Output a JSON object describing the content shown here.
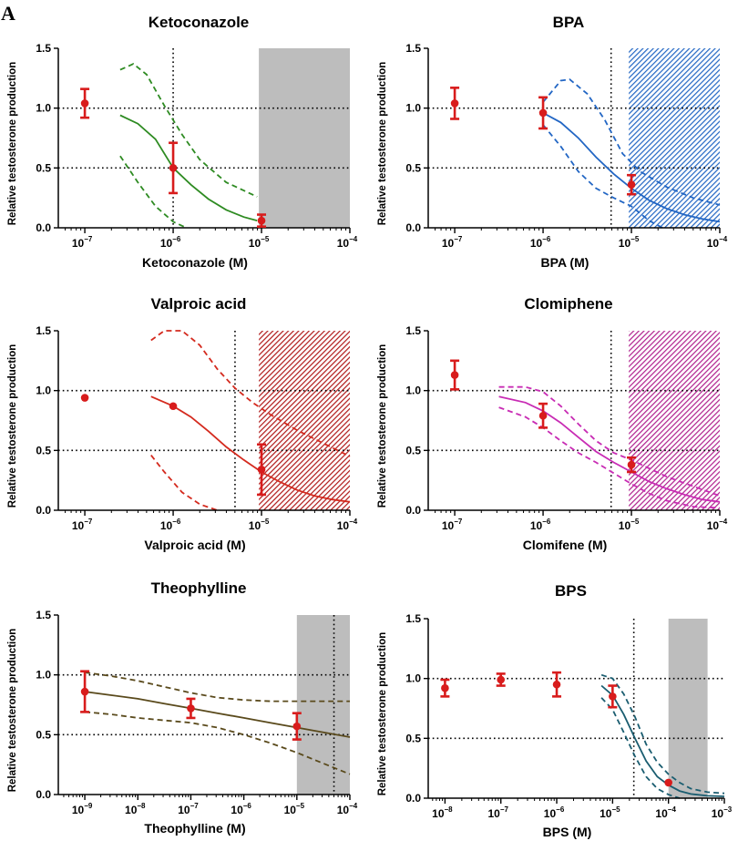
{
  "figure": {
    "panel_label": "A"
  },
  "chart_data": [
    {
      "type": "scatter",
      "title": "Ketoconazole",
      "xlabel": "Ketoconazole (M)",
      "ylabel": "Relative testosterone production",
      "x_scale": "log",
      "x_range_exp": [
        -7.3,
        -4
      ],
      "x_tick_exps": [
        -7,
        -6,
        -5,
        -4
      ],
      "ylim": [
        0,
        1.5
      ],
      "y_ticks": [
        0.0,
        0.5,
        1.0,
        1.5
      ],
      "color": "#2e8b22",
      "shade": {
        "type": "solid",
        "from_exp": -5.03,
        "to_exp": -4,
        "color": "#bdbdbd"
      },
      "vline_exp": -6,
      "hlines": [
        1.0,
        0.5
      ],
      "points": [
        {
          "x_exp": -7,
          "y": 1.04,
          "err": 0.12
        },
        {
          "x_exp": -6,
          "y": 0.5,
          "err": 0.21
        },
        {
          "x_exp": -5,
          "y": 0.06,
          "err": 0.05
        }
      ],
      "curve": [
        [
          -6.6,
          0.94
        ],
        [
          -6.4,
          0.87
        ],
        [
          -6.2,
          0.74
        ],
        [
          -6.0,
          0.5
        ],
        [
          -5.8,
          0.36
        ],
        [
          -5.6,
          0.24
        ],
        [
          -5.4,
          0.15
        ],
        [
          -5.2,
          0.09
        ],
        [
          -5.05,
          0.06
        ]
      ],
      "ci_upper": [
        [
          -6.6,
          1.32
        ],
        [
          -6.45,
          1.37
        ],
        [
          -6.3,
          1.28
        ],
        [
          -6.1,
          1.02
        ],
        [
          -5.9,
          0.78
        ],
        [
          -5.7,
          0.57
        ],
        [
          -5.4,
          0.38
        ],
        [
          -5.05,
          0.26
        ]
      ],
      "ci_lower": [
        [
          -6.6,
          0.6
        ],
        [
          -6.4,
          0.38
        ],
        [
          -6.2,
          0.18
        ],
        [
          -6.0,
          0.05
        ],
        [
          -5.85,
          0.0
        ]
      ]
    },
    {
      "type": "scatter",
      "title": "BPA",
      "xlabel": "BPA (M)",
      "ylabel": "Relative testosterone production",
      "x_scale": "log",
      "x_range_exp": [
        -7.3,
        -4
      ],
      "x_tick_exps": [
        -7,
        -6,
        -5,
        -4
      ],
      "ylim": [
        0,
        1.5
      ],
      "y_ticks": [
        0.0,
        0.5,
        1.0,
        1.5
      ],
      "color": "#2266c4",
      "shade": {
        "type": "hatch",
        "from_exp": -5.03,
        "to_exp": -4,
        "color": "#2266c4"
      },
      "vline_exp": -5.23,
      "hlines": [
        1.0,
        0.5
      ],
      "points": [
        {
          "x_exp": -7,
          "y": 1.04,
          "err": 0.13
        },
        {
          "x_exp": -6,
          "y": 0.96,
          "err": 0.13
        },
        {
          "x_exp": -5,
          "y": 0.36,
          "err": 0.08
        }
      ],
      "curve": [
        [
          -6.0,
          0.96
        ],
        [
          -5.8,
          0.88
        ],
        [
          -5.6,
          0.75
        ],
        [
          -5.4,
          0.59
        ],
        [
          -5.2,
          0.45
        ],
        [
          -5.0,
          0.33
        ],
        [
          -4.8,
          0.23
        ],
        [
          -4.6,
          0.16
        ],
        [
          -4.4,
          0.11
        ],
        [
          -4.2,
          0.075
        ],
        [
          -4.0,
          0.05
        ]
      ],
      "ci_upper": [
        [
          -6.0,
          1.05
        ],
        [
          -5.8,
          1.23
        ],
        [
          -5.7,
          1.24
        ],
        [
          -5.5,
          1.12
        ],
        [
          -5.3,
          0.9
        ],
        [
          -5.1,
          0.62
        ],
        [
          -4.9,
          0.47
        ],
        [
          -4.6,
          0.34
        ],
        [
          -4.3,
          0.25
        ],
        [
          -4.0,
          0.19
        ]
      ],
      "ci_lower": [
        [
          -6.0,
          0.86
        ],
        [
          -5.8,
          0.68
        ],
        [
          -5.6,
          0.47
        ],
        [
          -5.4,
          0.33
        ],
        [
          -5.2,
          0.25
        ],
        [
          -5.0,
          0.18
        ],
        [
          -4.8,
          0.06
        ],
        [
          -4.65,
          0.0
        ]
      ]
    },
    {
      "type": "scatter",
      "title": "Valproic acid",
      "xlabel": "Valproic acid (M)",
      "ylabel": "Relative testosterone production",
      "x_scale": "log",
      "x_range_exp": [
        -7.3,
        -4
      ],
      "x_tick_exps": [
        -7,
        -6,
        -5,
        -4
      ],
      "ylim": [
        0,
        1.5
      ],
      "y_ticks": [
        0.0,
        0.5,
        1.0,
        1.5
      ],
      "color": "#d42a1e",
      "shade": {
        "type": "hatch",
        "from_exp": -5.03,
        "to_exp": -4,
        "color": "#b01818"
      },
      "vline_exp": -5.3,
      "hlines": [
        1.0,
        0.5
      ],
      "points": [
        {
          "x_exp": -7,
          "y": 0.94,
          "err": 0
        },
        {
          "x_exp": -6,
          "y": 0.87,
          "err": 0
        },
        {
          "x_exp": -5,
          "y": 0.34,
          "err": 0.21
        }
      ],
      "curve": [
        [
          -6.25,
          0.95
        ],
        [
          -6.0,
          0.87
        ],
        [
          -5.8,
          0.78
        ],
        [
          -5.6,
          0.66
        ],
        [
          -5.4,
          0.53
        ],
        [
          -5.2,
          0.42
        ],
        [
          -5.0,
          0.32
        ],
        [
          -4.8,
          0.24
        ],
        [
          -4.6,
          0.17
        ],
        [
          -4.4,
          0.12
        ],
        [
          -4.2,
          0.09
        ],
        [
          -4.0,
          0.07
        ]
      ],
      "ci_upper": [
        [
          -6.25,
          1.42
        ],
        [
          -6.1,
          1.5
        ],
        [
          -5.9,
          1.5
        ],
        [
          -5.7,
          1.38
        ],
        [
          -5.5,
          1.18
        ],
        [
          -5.3,
          1.02
        ],
        [
          -5.1,
          0.9
        ],
        [
          -4.9,
          0.8
        ],
        [
          -4.6,
          0.67
        ],
        [
          -4.3,
          0.56
        ],
        [
          -4.0,
          0.45
        ]
      ],
      "ci_lower": [
        [
          -6.25,
          0.46
        ],
        [
          -6.1,
          0.32
        ],
        [
          -5.9,
          0.15
        ],
        [
          -5.7,
          0.05
        ],
        [
          -5.5,
          0.0
        ]
      ]
    },
    {
      "type": "scatter",
      "title": "Clomiphene",
      "xlabel": "Clomifene (M)",
      "ylabel": "Relative testosterone production",
      "x_scale": "log",
      "x_range_exp": [
        -7.3,
        -4
      ],
      "x_tick_exps": [
        -7,
        -6,
        -5,
        -4
      ],
      "ylim": [
        0,
        1.5
      ],
      "y_ticks": [
        0.0,
        0.5,
        1.0,
        1.5
      ],
      "color": "#c82cb4",
      "shade": {
        "type": "hatch",
        "from_exp": -5.03,
        "to_exp": -4,
        "color": "#b0208e"
      },
      "vline_exp": -5.23,
      "hlines": [
        1.0,
        0.5
      ],
      "points": [
        {
          "x_exp": -7,
          "y": 1.13,
          "err": 0.12
        },
        {
          "x_exp": -6,
          "y": 0.79,
          "err": 0.1
        },
        {
          "x_exp": -5,
          "y": 0.38,
          "err": 0.06
        }
      ],
      "curve": [
        [
          -6.5,
          0.95
        ],
        [
          -6.2,
          0.9
        ],
        [
          -6.0,
          0.83
        ],
        [
          -5.8,
          0.73
        ],
        [
          -5.6,
          0.61
        ],
        [
          -5.4,
          0.49
        ],
        [
          -5.2,
          0.4
        ],
        [
          -5.0,
          0.32
        ],
        [
          -4.8,
          0.24
        ],
        [
          -4.6,
          0.18
        ],
        [
          -4.4,
          0.13
        ],
        [
          -4.2,
          0.09
        ],
        [
          -4.0,
          0.07
        ]
      ],
      "ci_upper": [
        [
          -6.5,
          1.03
        ],
        [
          -6.2,
          1.03
        ],
        [
          -6.0,
          0.99
        ],
        [
          -5.8,
          0.87
        ],
        [
          -5.6,
          0.72
        ],
        [
          -5.4,
          0.58
        ],
        [
          -5.2,
          0.48
        ],
        [
          -5.0,
          0.42
        ],
        [
          -4.8,
          0.35
        ],
        [
          -4.6,
          0.28
        ],
        [
          -4.3,
          0.2
        ],
        [
          -4.0,
          0.12
        ]
      ],
      "ci_lower": [
        [
          -6.5,
          0.86
        ],
        [
          -6.2,
          0.78
        ],
        [
          -6.0,
          0.69
        ],
        [
          -5.8,
          0.58
        ],
        [
          -5.6,
          0.48
        ],
        [
          -5.4,
          0.4
        ],
        [
          -5.2,
          0.31
        ],
        [
          -5.0,
          0.22
        ],
        [
          -4.8,
          0.14
        ],
        [
          -4.6,
          0.08
        ],
        [
          -4.3,
          0.03
        ],
        [
          -4.0,
          0.02
        ]
      ]
    },
    {
      "type": "scatter",
      "title": "Theophylline",
      "xlabel": "Theophylline (M)",
      "ylabel": "Relative testosterone production",
      "x_scale": "log",
      "x_range_exp": [
        -9.5,
        -4
      ],
      "x_tick_exps": [
        -9,
        -8,
        -7,
        -6,
        -5,
        -4
      ],
      "ylim": [
        0,
        1.5
      ],
      "y_ticks": [
        0.0,
        0.5,
        1.0,
        1.5
      ],
      "color": "#5a4a1c",
      "shade": {
        "type": "solid",
        "from_exp": -5.0,
        "to_exp": -4,
        "color": "#bdbdbd"
      },
      "vline_exp": -4.3,
      "hlines": [
        1.0,
        0.5
      ],
      "points": [
        {
          "x_exp": -9,
          "y": 0.86,
          "err": 0.17
        },
        {
          "x_exp": -7,
          "y": 0.72,
          "err": 0.08
        },
        {
          "x_exp": -5,
          "y": 0.57,
          "err": 0.11
        }
      ],
      "curve": [
        [
          -9.0,
          0.86
        ],
        [
          -8.5,
          0.83
        ],
        [
          -8.0,
          0.8
        ],
        [
          -7.5,
          0.76
        ],
        [
          -7.0,
          0.72
        ],
        [
          -6.5,
          0.68
        ],
        [
          -6.0,
          0.64
        ],
        [
          -5.5,
          0.6
        ],
        [
          -5.0,
          0.56
        ],
        [
          -4.5,
          0.52
        ],
        [
          -4.0,
          0.48
        ]
      ],
      "ci_upper": [
        [
          -9.0,
          1.02
        ],
        [
          -8.5,
          0.99
        ],
        [
          -8.0,
          0.95
        ],
        [
          -7.5,
          0.9
        ],
        [
          -7.0,
          0.85
        ],
        [
          -6.5,
          0.81
        ],
        [
          -6.0,
          0.79
        ],
        [
          -5.5,
          0.78
        ],
        [
          -5.0,
          0.78
        ],
        [
          -4.5,
          0.78
        ],
        [
          -4.0,
          0.78
        ]
      ],
      "ci_lower": [
        [
          -9.0,
          0.69
        ],
        [
          -8.5,
          0.67
        ],
        [
          -8.0,
          0.64
        ],
        [
          -7.5,
          0.62
        ],
        [
          -7.0,
          0.6
        ],
        [
          -6.5,
          0.56
        ],
        [
          -6.0,
          0.5
        ],
        [
          -5.5,
          0.43
        ],
        [
          -5.0,
          0.35
        ],
        [
          -4.5,
          0.26
        ],
        [
          -4.0,
          0.17
        ]
      ]
    },
    {
      "type": "scatter",
      "title": "BPS",
      "xlabel": "BPS (M)",
      "ylabel": "Relative testosterone production",
      "x_scale": "log",
      "x_range_exp": [
        -8.3,
        -3
      ],
      "x_tick_exps": [
        -8,
        -7,
        -6,
        -5,
        -4,
        -3
      ],
      "ylim": [
        0,
        1.5
      ],
      "y_ticks": [
        0.0,
        0.5,
        1.0,
        1.5
      ],
      "color": "#1a5d70",
      "shade": {
        "type": "solid",
        "from_exp": -4.0,
        "to_exp": -3.3,
        "color": "#bdbdbd"
      },
      "vline_exp": -4.62,
      "hlines": [
        1.0,
        0.5
      ],
      "points": [
        {
          "x_exp": -8,
          "y": 0.92,
          "err": 0.07
        },
        {
          "x_exp": -7,
          "y": 0.99,
          "err": 0.05
        },
        {
          "x_exp": -6,
          "y": 0.95,
          "err": 0.1
        },
        {
          "x_exp": -5,
          "y": 0.85,
          "err": 0.09
        },
        {
          "x_exp": -4,
          "y": 0.13,
          "err": 0
        }
      ],
      "curve": [
        [
          -5.2,
          0.94
        ],
        [
          -5.0,
          0.86
        ],
        [
          -4.8,
          0.7
        ],
        [
          -4.6,
          0.5
        ],
        [
          -4.4,
          0.31
        ],
        [
          -4.2,
          0.18
        ],
        [
          -4.0,
          0.11
        ],
        [
          -3.8,
          0.06
        ],
        [
          -3.6,
          0.035
        ],
        [
          -3.3,
          0.02
        ],
        [
          -3.0,
          0.015
        ]
      ],
      "ci_upper": [
        [
          -5.2,
          1.03
        ],
        [
          -5.0,
          1.0
        ],
        [
          -4.8,
          0.87
        ],
        [
          -4.6,
          0.68
        ],
        [
          -4.4,
          0.45
        ],
        [
          -4.2,
          0.3
        ],
        [
          -4.0,
          0.2
        ],
        [
          -3.8,
          0.13
        ],
        [
          -3.6,
          0.08
        ],
        [
          -3.3,
          0.05
        ],
        [
          -3.0,
          0.04
        ]
      ],
      "ci_lower": [
        [
          -5.2,
          0.84
        ],
        [
          -5.0,
          0.74
        ],
        [
          -4.8,
          0.55
        ],
        [
          -4.6,
          0.35
        ],
        [
          -4.4,
          0.18
        ],
        [
          -4.2,
          0.08
        ],
        [
          -4.0,
          0.03
        ],
        [
          -3.8,
          0.0
        ]
      ]
    }
  ]
}
